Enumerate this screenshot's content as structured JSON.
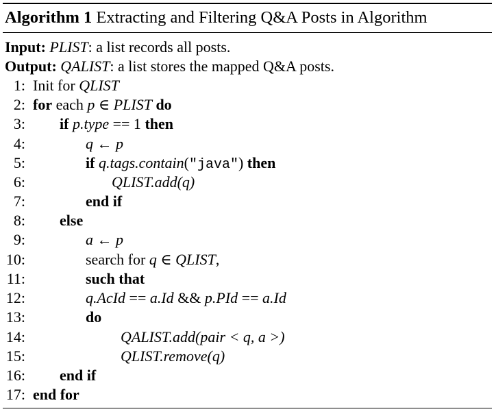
{
  "algorithm": {
    "label": "Algorithm 1",
    "title": "Extracting and Filtering Q&A Posts in Algorithm"
  },
  "io": {
    "input_label": "Input:",
    "input_var": "PLIST",
    "input_desc": ": a list records all posts.",
    "output_label": "Output:",
    "output_var": "QALIST",
    "output_desc": ": a list stores the mapped Q&A posts."
  },
  "lines": [
    {
      "num": "1:",
      "text": "Init for QLIST"
    },
    {
      "num": "2:",
      "text": "for each p ∈ PLIST do"
    },
    {
      "num": "3:",
      "text": "if p.type == 1 then"
    },
    {
      "num": "4:",
      "text": "q ← p"
    },
    {
      "num": "5:",
      "text": "if q.tags.contain(\"java\") then"
    },
    {
      "num": "6:",
      "text": "QLIST.add(q)"
    },
    {
      "num": "7:",
      "text": "end if"
    },
    {
      "num": "8:",
      "text": "else"
    },
    {
      "num": "9:",
      "text": "a ← p"
    },
    {
      "num": "10:",
      "text": "search for q ∈ QLIST,"
    },
    {
      "num": "11:",
      "text": "such that"
    },
    {
      "num": "12:",
      "text": "q.AcId == a.Id && p.PId == a.Id"
    },
    {
      "num": "13:",
      "text": "do"
    },
    {
      "num": "14:",
      "text": "QALIST.add(pair < q, a >)"
    },
    {
      "num": "15:",
      "text": "QLIST.remove(q)"
    },
    {
      "num": "16:",
      "text": "end if"
    },
    {
      "num": "17:",
      "text": "end for"
    }
  ],
  "tokens": {
    "init_for": "Init for ",
    "qlist": "QLIST",
    "plist": "PLIST",
    "qalist": "QALIST",
    "kw_for": "for",
    "each": " each ",
    "elem": " ∈ ",
    "kw_do": " do",
    "kw_if": "if",
    "ptype": "p.type",
    "eq_one": " == 1 ",
    "kw_then": "then",
    "q": "q",
    "p": "p",
    "a": "a",
    "arrow": " ← ",
    "qtags": "q.tags.contain",
    "open_paren": "(",
    "java": "\"java\"",
    "close_paren": ")",
    "add_q": ".add(q)",
    "end_if": "end if",
    "else": "else",
    "search_for": "search for ",
    "comma": ",",
    "such_that": "such that",
    "acid": "q.AcId",
    "eqeq": " == ",
    "aid": "a.Id",
    "and": " && ",
    "ppid": "p.PId",
    "do": "do",
    "add_pair": ".add(pair < q, a >)",
    "remove_q": ".remove(q)",
    "end_for": "end for"
  }
}
